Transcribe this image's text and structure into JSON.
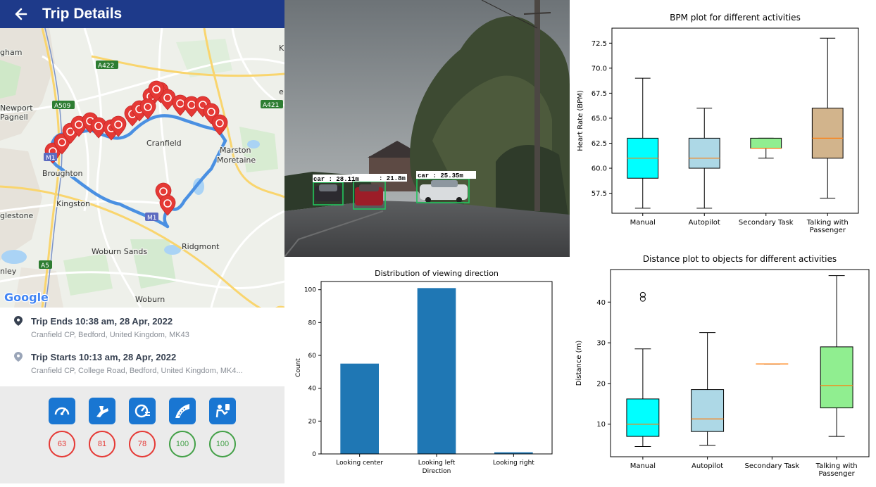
{
  "app": {
    "header_title": "Trip Details",
    "map": {
      "places": [
        {
          "name": "gham"
        },
        {
          "name": "Newport"
        },
        {
          "name": "Pagnell"
        },
        {
          "name": "Broughton"
        },
        {
          "name": "Cranfield"
        },
        {
          "name": "Marston"
        },
        {
          "name": "Moretaine"
        },
        {
          "name": "Kingston"
        },
        {
          "name": "glestone"
        },
        {
          "name": "Woburn Sands"
        },
        {
          "name": "Ridgmont"
        },
        {
          "name": "nley"
        },
        {
          "name": "Woburn"
        },
        {
          "name": "K"
        },
        {
          "name": "e"
        }
      ],
      "road_badges": [
        {
          "label": "A422",
          "color": "#2e7d32"
        },
        {
          "label": "A509",
          "color": "#2e7d32"
        },
        {
          "label": "A421",
          "color": "#2e7d32"
        },
        {
          "label": "M1",
          "color": "#5c6bc0"
        },
        {
          "label": "M1",
          "color": "#5c6bc0"
        },
        {
          "label": "A5",
          "color": "#2e7d32"
        }
      ],
      "logo": "Google"
    },
    "trip_end": {
      "title": "Trip Ends 10:38 am, 28 Apr, 2022",
      "address": "Cranfield CP, Bedford, United Kingdom, MK43"
    },
    "trip_start": {
      "title": "Trip Starts 10:13 am, 28 Apr, 2022",
      "address": "Cranfield CP, College Road, Bedford, United Kingdom, MK4..."
    },
    "scores": [
      {
        "icon": "speedometer-icon",
        "value": "63",
        "color": "#e53935"
      },
      {
        "icon": "braking-icon",
        "value": "81",
        "color": "#e53935"
      },
      {
        "icon": "acceleration-icon",
        "value": "78",
        "color": "#e53935"
      },
      {
        "icon": "cornering-icon",
        "value": "100",
        "color": "#43a047"
      },
      {
        "icon": "phone-usage-icon",
        "value": "100",
        "color": "#43a047"
      }
    ]
  },
  "camera": {
    "detections": [
      {
        "label": "car : 28.11m"
      },
      {
        "label": ": 21.8m"
      },
      {
        "label": "car : 25.35m"
      }
    ]
  },
  "chart_data": [
    {
      "type": "box",
      "title": "BPM plot for different activities",
      "xlabel": "",
      "ylabel": "Heart Rate (BPM)",
      "ylim": [
        55.5,
        74
      ],
      "yticks": [
        "57.5",
        "60.0",
        "62.5",
        "65.0",
        "67.5",
        "70.0",
        "72.5"
      ],
      "categories": [
        "Manual",
        "Autopilot",
        "Secondary Task",
        "Talking with Passenger"
      ],
      "boxes": [
        {
          "whislo": 56,
          "q1": 59,
          "med": 61,
          "q3": 63,
          "whishi": 69,
          "fliers": [],
          "color": "#00ffff"
        },
        {
          "whislo": 56,
          "q1": 60,
          "med": 61,
          "q3": 63,
          "whishi": 66,
          "fliers": [],
          "color": "#add8e6"
        },
        {
          "whislo": 61,
          "q1": 62,
          "med": 62,
          "q3": 63,
          "whishi": 63,
          "fliers": [],
          "color": "#90ee90"
        },
        {
          "whislo": 57,
          "q1": 61,
          "med": 63,
          "q3": 66,
          "whishi": 73,
          "fliers": [],
          "color": "#d2b48c"
        }
      ],
      "grid": false
    },
    {
      "type": "bar",
      "title": "Distribution of viewing direction",
      "xlabel": "Direction",
      "ylabel": "Count",
      "ylim": [
        0,
        105
      ],
      "yticks": [
        "0",
        "20",
        "40",
        "60",
        "80",
        "100"
      ],
      "categories": [
        "Looking center",
        "Looking left",
        "Looking right"
      ],
      "values": [
        55,
        101,
        1
      ],
      "color": "#1f77b4",
      "grid": false
    },
    {
      "type": "box",
      "title": "Distance plot to objects for different activities",
      "xlabel": "",
      "ylabel": "Distance (m)",
      "ylim": [
        2,
        48
      ],
      "yticks": [
        "10",
        "20",
        "30",
        "40"
      ],
      "categories": [
        "Manual",
        "Autopilot",
        "Secondary Task",
        "Talking with Passenger"
      ],
      "boxes": [
        {
          "whislo": 4.5,
          "q1": 7,
          "med": 10,
          "q3": 16.2,
          "whishi": 28.5,
          "fliers": [
            40.8,
            41.8
          ],
          "color": "#00ffff"
        },
        {
          "whislo": 4.8,
          "q1": 8.2,
          "med": 11.3,
          "q3": 18.5,
          "whishi": 32.5,
          "fliers": [],
          "color": "#add8e6"
        },
        {
          "whislo": 24.8,
          "q1": 24.8,
          "med": 24.8,
          "q3": 24.8,
          "whishi": 24.8,
          "fliers": [],
          "color": "#90ee90"
        },
        {
          "whislo": 7,
          "q1": 14,
          "med": 19.5,
          "q3": 29,
          "whishi": 46.5,
          "fliers": [],
          "color": "#90ee90"
        }
      ],
      "grid": false
    }
  ]
}
